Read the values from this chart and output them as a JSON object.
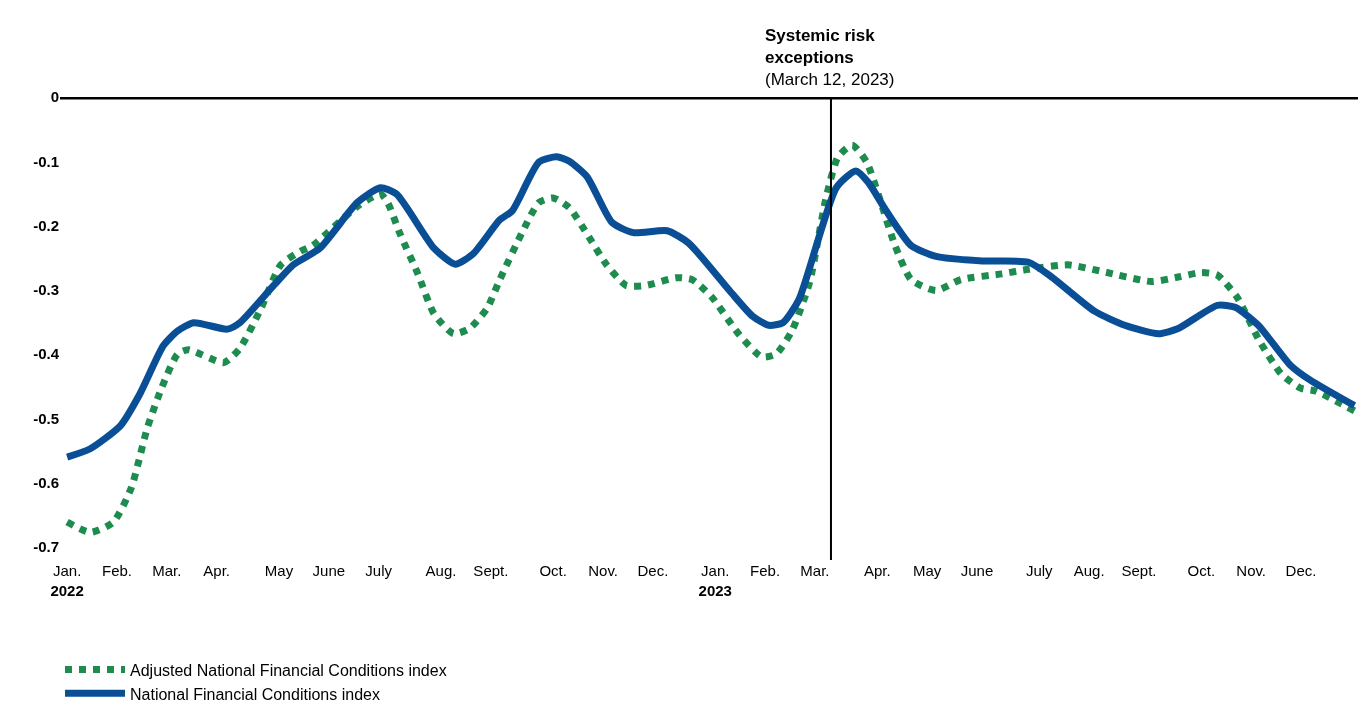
{
  "chart_data": {
    "type": "line",
    "xlim": [
      "2022-01-03",
      "2024-01-02"
    ],
    "ylim": [
      -0.72,
      0
    ],
    "yticks": [
      0,
      -0.1,
      -0.2,
      -0.3,
      -0.4,
      -0.5,
      -0.6,
      -0.7
    ],
    "xticks": [
      {
        "value": "2022-01-07",
        "label": "Jan.\n2022"
      },
      {
        "value": "2022-02-04",
        "label": "Feb."
      },
      {
        "value": "2022-03-04",
        "label": "Mar."
      },
      {
        "value": "2022-04-01",
        "label": "Apr."
      },
      {
        "value": "2022-05-06",
        "label": "May"
      },
      {
        "value": "2022-06-03",
        "label": "June"
      },
      {
        "value": "2022-07-01",
        "label": "July"
      },
      {
        "value": "2022-08-05",
        "label": "Aug."
      },
      {
        "value": "2022-09-02",
        "label": "Sept."
      },
      {
        "value": "2022-10-07",
        "label": "Oct."
      },
      {
        "value": "2022-11-04",
        "label": "Nov."
      },
      {
        "value": "2022-12-02",
        "label": "Dec."
      },
      {
        "value": "2023-01-06",
        "label": "Jan.\n2023"
      },
      {
        "value": "2023-02-03",
        "label": "Feb."
      },
      {
        "value": "2023-03-03",
        "label": "Mar."
      },
      {
        "value": "2023-04-07",
        "label": "Apr."
      },
      {
        "value": "2023-05-05",
        "label": "May"
      },
      {
        "value": "2023-06-02",
        "label": "June"
      },
      {
        "value": "2023-07-07",
        "label": "July"
      },
      {
        "value": "2023-08-04",
        "label": "Aug."
      },
      {
        "value": "2023-09-01",
        "label": "Sept."
      },
      {
        "value": "2023-10-06",
        "label": "Oct."
      },
      {
        "value": "2023-11-03",
        "label": "Nov."
      },
      {
        "value": "2023-12-01",
        "label": "Dec."
      }
    ],
    "legend": "bottom left",
    "ref_lines": [
      {
        "axis": "y",
        "value": 0,
        "color": "#000000"
      },
      {
        "axis": "x",
        "value": "2023-03-12",
        "label": "Systemic risk\nexceptions\n(March 12, 2023)",
        "color": "#000000"
      }
    ],
    "series": [
      {
        "name": "Adjusted National Financial Conditions index",
        "color": "#1e8c4e",
        "line_style": "dotted",
        "x": [
          "2022-01-07",
          "2022-01-20",
          "2022-02-02",
          "2022-02-12",
          "2022-02-21",
          "2022-03-01",
          "2022-03-10",
          "2022-03-16",
          "2022-04-05",
          "2022-04-14",
          "2022-04-26",
          "2022-05-07",
          "2022-05-18",
          "2022-05-25",
          "2022-06-19",
          "2022-07-02",
          "2022-07-06",
          "2022-07-13",
          "2022-07-23",
          "2022-08-01",
          "2022-08-12",
          "2022-08-21",
          "2022-08-31",
          "2022-09-07",
          "2022-09-20",
          "2022-09-29",
          "2022-10-07",
          "2022-10-16",
          "2022-10-26",
          "2022-11-06",
          "2022-11-17",
          "2022-11-28",
          "2022-12-15",
          "2022-12-24",
          "2023-01-04",
          "2023-01-19",
          "2023-02-01",
          "2023-02-09",
          "2023-02-18",
          "2023-02-28",
          "2023-03-09",
          "2023-03-16",
          "2023-03-24",
          "2023-04-01",
          "2023-04-08",
          "2023-04-17",
          "2023-04-26",
          "2023-05-10",
          "2023-05-24",
          "2023-06-16",
          "2023-07-01",
          "2023-07-23",
          "2023-08-11",
          "2023-09-08",
          "2023-09-23",
          "2023-10-06",
          "2023-10-15",
          "2023-10-26",
          "2023-11-08",
          "2023-11-20",
          "2023-12-01",
          "2023-12-09",
          "2023-12-31"
        ],
        "values": [
          -0.661,
          -0.677,
          -0.661,
          -0.608,
          -0.515,
          -0.453,
          -0.4,
          -0.393,
          -0.413,
          -0.391,
          -0.328,
          -0.261,
          -0.24,
          -0.231,
          -0.17,
          -0.151,
          -0.164,
          -0.213,
          -0.275,
          -0.337,
          -0.368,
          -0.36,
          -0.328,
          -0.284,
          -0.208,
          -0.164,
          -0.157,
          -0.172,
          -0.213,
          -0.261,
          -0.293,
          -0.293,
          -0.281,
          -0.284,
          -0.311,
          -0.368,
          -0.404,
          -0.4,
          -0.364,
          -0.288,
          -0.16,
          -0.093,
          -0.075,
          -0.101,
          -0.155,
          -0.231,
          -0.284,
          -0.301,
          -0.284,
          -0.275,
          -0.268,
          -0.261,
          -0.271,
          -0.287,
          -0.28,
          -0.273,
          -0.277,
          -0.311,
          -0.381,
          -0.431,
          -0.453,
          -0.457,
          -0.488
        ]
      },
      {
        "name": "National Financial Conditions index",
        "color": "#0a4f96",
        "line_style": "solid",
        "x": [
          "2022-01-07",
          "2022-01-20",
          "2022-02-06",
          "2022-02-17",
          "2022-03-02",
          "2022-03-10",
          "2022-03-19",
          "2022-04-07",
          "2022-04-14",
          "2022-05-03",
          "2022-05-14",
          "2022-05-29",
          "2022-06-19",
          "2022-07-02",
          "2022-07-11",
          "2022-08-01",
          "2022-08-13",
          "2022-08-23",
          "2022-09-07",
          "2022-09-14",
          "2022-09-29",
          "2022-10-09",
          "2022-10-16",
          "2022-10-26",
          "2022-11-09",
          "2022-11-21",
          "2022-12-10",
          "2022-12-22",
          "2023-01-14",
          "2023-01-27",
          "2023-02-05",
          "2023-02-13",
          "2023-02-22",
          "2023-03-15",
          "2023-03-26",
          "2023-04-02",
          "2023-04-12",
          "2023-04-26",
          "2023-05-10",
          "2023-06-05",
          "2023-07-01",
          "2023-07-14",
          "2023-08-07",
          "2023-08-24",
          "2023-09-12",
          "2023-09-23",
          "2023-10-15",
          "2023-10-25",
          "2023-11-07",
          "2023-11-25",
          "2023-12-06",
          "2023-12-31"
        ],
        "values": [
          -0.56,
          -0.547,
          -0.511,
          -0.461,
          -0.387,
          -0.364,
          -0.351,
          -0.361,
          -0.351,
          -0.293,
          -0.261,
          -0.235,
          -0.164,
          -0.141,
          -0.151,
          -0.235,
          -0.26,
          -0.244,
          -0.191,
          -0.177,
          -0.101,
          -0.093,
          -0.1,
          -0.124,
          -0.195,
          -0.211,
          -0.208,
          -0.227,
          -0.301,
          -0.341,
          -0.355,
          -0.351,
          -0.315,
          -0.141,
          -0.115,
          -0.133,
          -0.177,
          -0.231,
          -0.248,
          -0.255,
          -0.257,
          -0.28,
          -0.333,
          -0.355,
          -0.368,
          -0.36,
          -0.324,
          -0.327,
          -0.355,
          -0.417,
          -0.44,
          -0.48
        ]
      }
    ]
  }
}
